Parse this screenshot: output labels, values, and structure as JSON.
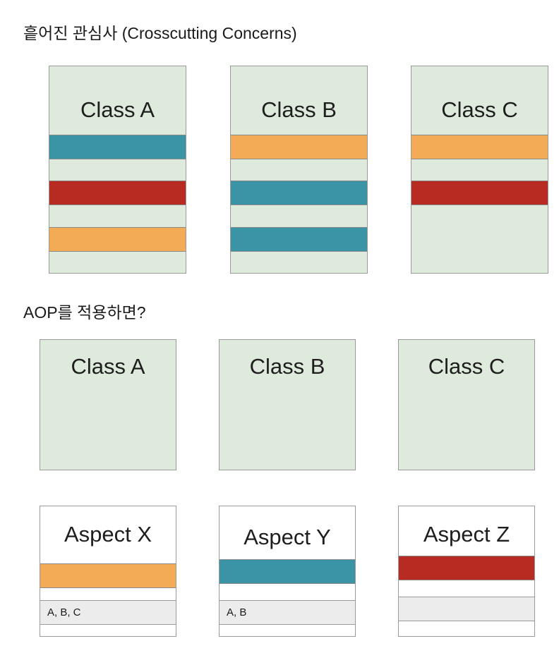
{
  "colors": {
    "teal": "#3a94a6",
    "red": "#b72b22",
    "orange": "#f3ac55",
    "class_fill": "#deeadb"
  },
  "section1": {
    "title": "흩어진 관심사 (Crosscutting Concerns)",
    "classes": [
      {
        "label": "Class A",
        "stripes": [
          "teal",
          "red",
          "orange"
        ]
      },
      {
        "label": "Class B",
        "stripes": [
          "orange",
          "teal",
          "teal"
        ]
      },
      {
        "label": "Class C",
        "stripes": [
          "orange",
          "red"
        ]
      }
    ]
  },
  "section2": {
    "title": "AOP를 적용하면?",
    "classes": [
      {
        "label": "Class A"
      },
      {
        "label": "Class B"
      },
      {
        "label": "Class C"
      }
    ],
    "aspects": [
      {
        "label": "Aspect X",
        "color": "orange",
        "targets": "A, B, C"
      },
      {
        "label": "Aspect Y",
        "color": "teal",
        "targets": "A, B"
      },
      {
        "label": "Aspect Z",
        "color": "red",
        "targets": ""
      }
    ]
  }
}
